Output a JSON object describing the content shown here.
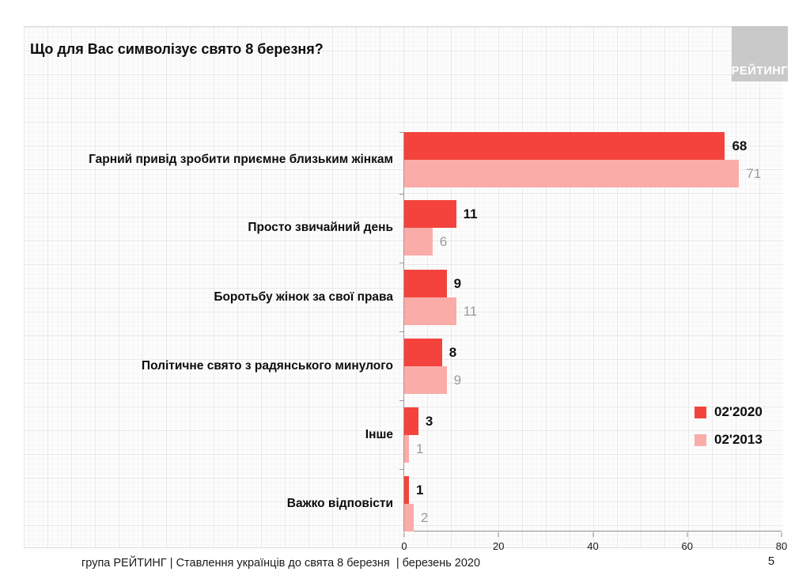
{
  "page": {
    "title": "Що для Вас символізує свято 8 березня?",
    "logo_text": "РЕЙТИНГ",
    "footer": "група РЕЙТИНГ | Ставлення українців до свята 8 березня  | березень 2020",
    "page_number": "5"
  },
  "colors": {
    "series_2020": "#f4433d",
    "series_2013": "#faaca9",
    "value_2020_text": "#111111",
    "value_2013_text": "#9b9b9b",
    "logo_bg": "#c9c9c9"
  },
  "chart_data": {
    "type": "bar",
    "orientation": "horizontal",
    "title": "Що для Вас символізує свято 8 березня?",
    "categories": [
      "Гарний привід зробити приємне близьким жінкам",
      "Просто звичайний день",
      "Боротьбу жінок за свої права",
      "Політичне свято з радянського минулого",
      "Інше",
      "Важко відповісти"
    ],
    "series": [
      {
        "name": "02'2020",
        "color": "#f4433d",
        "values": [
          68,
          11,
          9,
          8,
          3,
          1
        ]
      },
      {
        "name": "02'2013",
        "color": "#faaca9",
        "values": [
          71,
          6,
          11,
          9,
          1,
          2
        ]
      }
    ],
    "xlabel": "",
    "ylabel": "",
    "xlim": [
      0,
      80
    ],
    "x_ticks": [
      0,
      20,
      40,
      60,
      80
    ],
    "grid": false,
    "legend_position": "right-middle",
    "value_labels": true
  }
}
